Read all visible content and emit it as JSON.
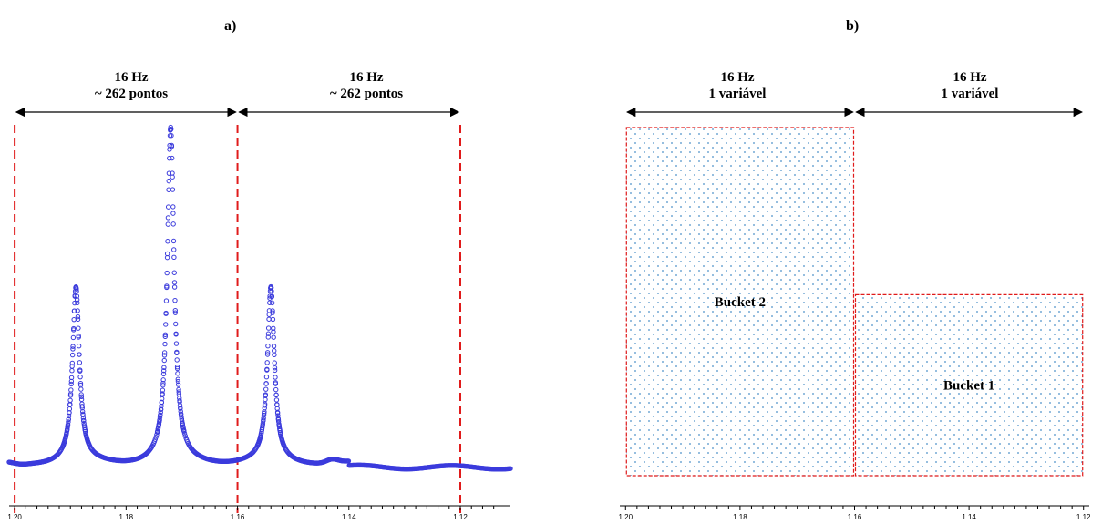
{
  "panel_a": {
    "label": "a)",
    "spans": [
      {
        "line1": "16 Hz",
        "line2": "~ 262 pontos"
      },
      {
        "line1": "16 Hz",
        "line2": "~ 262 pontos"
      }
    ]
  },
  "panel_b": {
    "label": "b)",
    "spans": [
      {
        "line1": "16 Hz",
        "line2": "1 variável"
      },
      {
        "line1": "16 Hz",
        "line2": "1 variável"
      }
    ]
  },
  "colors": {
    "spectrum_points": "#3b3bdc",
    "divider_lines": "#e01b1b",
    "bucket_dots": "#4a90c8"
  },
  "chart_data": [
    {
      "type": "scatter",
      "name": "panel-a-spectrum",
      "xlim": [
        1.201,
        1.111
      ],
      "reversed_x": true,
      "x_ticks": [
        "1.20",
        "1.18",
        "1.16",
        "1.14",
        "1.12"
      ],
      "x_tick_values": [
        1.2,
        1.18,
        1.16,
        1.14,
        1.12
      ],
      "ylim": [
        0,
        1
      ],
      "dividers": [
        1.2,
        1.16,
        1.12
      ],
      "peaks": [
        {
          "x": 1.189,
          "height": 0.48
        },
        {
          "x": 1.172,
          "height": 0.92
        },
        {
          "x": 1.154,
          "height": 0.48
        }
      ]
    },
    {
      "type": "bar",
      "name": "panel-b-buckets",
      "xlim": [
        1.201,
        1.119
      ],
      "reversed_x": true,
      "x_ticks": [
        "1.20",
        "1.18",
        "1.16",
        "1.14",
        "1.12"
      ],
      "x_tick_values": [
        1.2,
        1.18,
        1.16,
        1.14,
        1.12
      ],
      "ylim": [
        0,
        1
      ],
      "buckets": [
        {
          "label": "Bucket 2",
          "x_start": 1.2,
          "x_end": 1.16,
          "value": 1.0
        },
        {
          "label": "Bucket 1",
          "x_start": 1.16,
          "x_end": 1.12,
          "value": 0.52
        }
      ]
    }
  ]
}
